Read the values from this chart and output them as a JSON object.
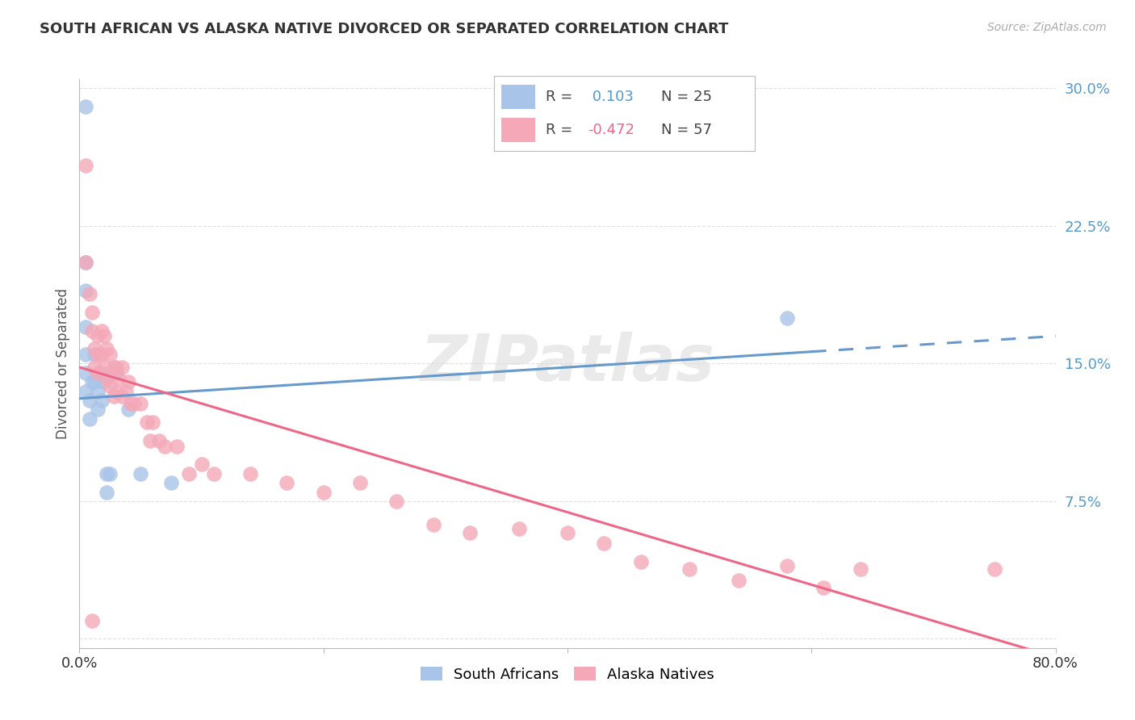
{
  "title": "SOUTH AFRICAN VS ALASKA NATIVE DIVORCED OR SEPARATED CORRELATION CHART",
  "source": "Source: ZipAtlas.com",
  "ylabel": "Divorced or Separated",
  "xlim": [
    0.0,
    0.8
  ],
  "ylim": [
    -0.005,
    0.305
  ],
  "yticks": [
    0.0,
    0.075,
    0.15,
    0.225,
    0.3
  ],
  "ytick_labels": [
    "",
    "7.5%",
    "15.0%",
    "22.5%",
    "30.0%"
  ],
  "xticks": [
    0.0,
    0.2,
    0.4,
    0.6,
    0.8
  ],
  "xtick_labels": [
    "0.0%",
    "",
    "",
    "",
    "80.0%"
  ],
  "background_color": "#ffffff",
  "grid_color": "#e0e0e0",
  "watermark": "ZIPatlas",
  "blue_color": "#a8c4e8",
  "pink_color": "#f4a8b8",
  "blue_line_color": "#6699cc",
  "pink_line_color": "#ee6688",
  "legend_R_blue": "0.103",
  "legend_N_blue": "25",
  "legend_R_pink": "-0.472",
  "legend_N_pink": "57",
  "blue_line_x0": 0.0,
  "blue_line_y0": 0.131,
  "blue_line_x1": 0.8,
  "blue_line_y1": 0.165,
  "blue_line_solid_end": 0.6,
  "pink_line_x0": 0.0,
  "pink_line_y0": 0.148,
  "pink_line_x1": 0.8,
  "pink_line_y1": -0.01,
  "south_african_x": [
    0.005,
    0.005,
    0.005,
    0.005,
    0.005,
    0.005,
    0.005,
    0.008,
    0.008,
    0.01,
    0.012,
    0.012,
    0.015,
    0.015,
    0.018,
    0.018,
    0.02,
    0.022,
    0.022,
    0.025,
    0.03,
    0.04,
    0.05,
    0.075,
    0.58
  ],
  "south_african_y": [
    0.29,
    0.205,
    0.19,
    0.17,
    0.155,
    0.145,
    0.135,
    0.13,
    0.12,
    0.14,
    0.155,
    0.14,
    0.135,
    0.125,
    0.145,
    0.13,
    0.14,
    0.09,
    0.08,
    0.09,
    0.145,
    0.125,
    0.09,
    0.085,
    0.175
  ],
  "alaska_native_x": [
    0.005,
    0.005,
    0.008,
    0.01,
    0.01,
    0.012,
    0.012,
    0.015,
    0.015,
    0.015,
    0.018,
    0.018,
    0.02,
    0.02,
    0.022,
    0.022,
    0.025,
    0.025,
    0.028,
    0.028,
    0.03,
    0.03,
    0.032,
    0.035,
    0.035,
    0.038,
    0.04,
    0.042,
    0.045,
    0.05,
    0.055,
    0.058,
    0.06,
    0.065,
    0.07,
    0.08,
    0.09,
    0.1,
    0.11,
    0.14,
    0.17,
    0.2,
    0.23,
    0.26,
    0.29,
    0.32,
    0.36,
    0.4,
    0.43,
    0.46,
    0.5,
    0.54,
    0.58,
    0.61,
    0.64,
    0.75,
    0.01
  ],
  "alaska_native_y": [
    0.258,
    0.205,
    0.188,
    0.178,
    0.168,
    0.158,
    0.148,
    0.165,
    0.155,
    0.145,
    0.168,
    0.155,
    0.165,
    0.148,
    0.158,
    0.142,
    0.155,
    0.138,
    0.148,
    0.132,
    0.148,
    0.135,
    0.142,
    0.148,
    0.132,
    0.135,
    0.14,
    0.128,
    0.128,
    0.128,
    0.118,
    0.108,
    0.118,
    0.108,
    0.105,
    0.105,
    0.09,
    0.095,
    0.09,
    0.09,
    0.085,
    0.08,
    0.085,
    0.075,
    0.062,
    0.058,
    0.06,
    0.058,
    0.052,
    0.042,
    0.038,
    0.032,
    0.04,
    0.028,
    0.038,
    0.038,
    0.01
  ]
}
